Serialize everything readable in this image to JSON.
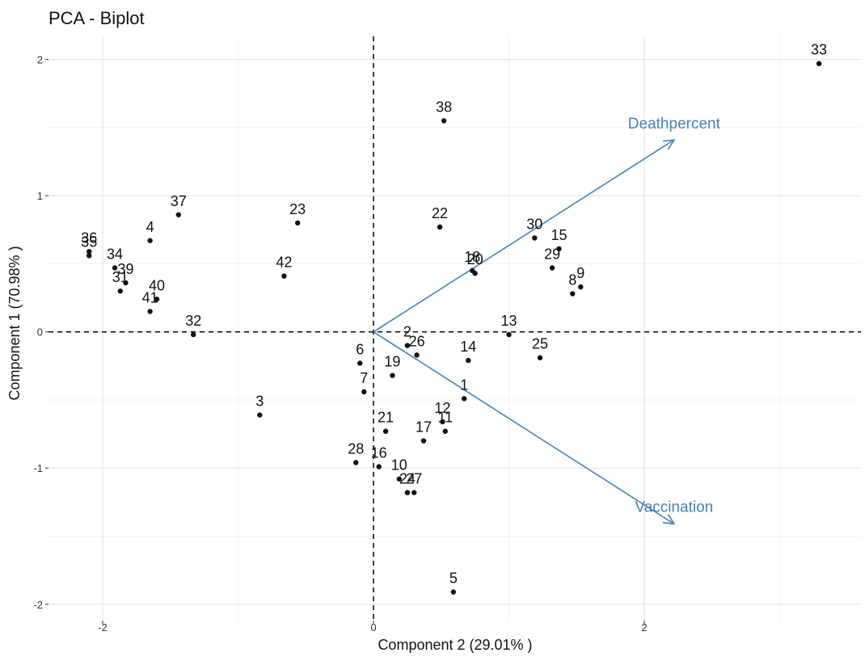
{
  "chart_data": {
    "type": "scatter",
    "title": "PCA - Biplot",
    "xlabel": "Component 2 (29.01% )",
    "ylabel": "Component 1 (70.98% )",
    "xlim": [
      -2.4,
      3.6
    ],
    "ylim": [
      -2.12,
      2.17
    ],
    "xticks": [
      -2,
      0,
      2
    ],
    "yticks": [
      -2,
      -1,
      0,
      1,
      2
    ],
    "grid": true,
    "reference_lines": {
      "x": 0,
      "y": 0,
      "style": "dashed"
    },
    "arrow_color": "#4682b4",
    "point_color": "#111111",
    "points": [
      {
        "label": "1",
        "x": 0.67,
        "y": -0.49
      },
      {
        "label": "2",
        "x": 0.25,
        "y": -0.1
      },
      {
        "label": "3",
        "x": -0.84,
        "y": -0.61
      },
      {
        "label": "4",
        "x": -1.65,
        "y": 0.67
      },
      {
        "label": "5",
        "x": 0.59,
        "y": -1.91
      },
      {
        "label": "6",
        "x": -0.1,
        "y": -0.23
      },
      {
        "label": "7",
        "x": -0.07,
        "y": -0.44
      },
      {
        "label": "8",
        "x": 1.47,
        "y": 0.28
      },
      {
        "label": "9",
        "x": 1.53,
        "y": 0.33
      },
      {
        "label": "10",
        "x": 0.19,
        "y": -1.08
      },
      {
        "label": "11",
        "x": 0.53,
        "y": -0.73
      },
      {
        "label": "12",
        "x": 0.51,
        "y": -0.66
      },
      {
        "label": "13",
        "x": 1.0,
        "y": -0.02
      },
      {
        "label": "14",
        "x": 0.7,
        "y": -0.21
      },
      {
        "label": "15",
        "x": 1.37,
        "y": 0.61
      },
      {
        "label": "16",
        "x": 0.04,
        "y": -0.99
      },
      {
        "label": "17",
        "x": 0.37,
        "y": -0.8
      },
      {
        "label": "18",
        "x": 0.73,
        "y": 0.45
      },
      {
        "label": "19",
        "x": 0.14,
        "y": -0.32
      },
      {
        "label": "20",
        "x": 0.75,
        "y": 0.43
      },
      {
        "label": "21",
        "x": 0.09,
        "y": -0.73
      },
      {
        "label": "22",
        "x": 0.49,
        "y": 0.77
      },
      {
        "label": "23",
        "x": -0.56,
        "y": 0.8
      },
      {
        "label": "24",
        "x": 0.25,
        "y": -1.18
      },
      {
        "label": "25",
        "x": 1.23,
        "y": -0.19
      },
      {
        "label": "26",
        "x": 0.32,
        "y": -0.17
      },
      {
        "label": "27",
        "x": 0.3,
        "y": -1.18
      },
      {
        "label": "28",
        "x": -0.13,
        "y": -0.96
      },
      {
        "label": "29",
        "x": 1.32,
        "y": 0.47
      },
      {
        "label": "30",
        "x": 1.19,
        "y": 0.69
      },
      {
        "label": "31",
        "x": -1.87,
        "y": 0.3
      },
      {
        "label": "32",
        "x": -1.33,
        "y": -0.02
      },
      {
        "label": "33",
        "x": 3.29,
        "y": 1.97
      },
      {
        "label": "34",
        "x": -1.91,
        "y": 0.47
      },
      {
        "label": "35",
        "x": -2.1,
        "y": 0.56
      },
      {
        "label": "36",
        "x": -2.1,
        "y": 0.59
      },
      {
        "label": "37",
        "x": -1.44,
        "y": 0.86
      },
      {
        "label": "38",
        "x": 0.52,
        "y": 1.55
      },
      {
        "label": "39",
        "x": -1.83,
        "y": 0.36
      },
      {
        "label": "40",
        "x": -1.6,
        "y": 0.24
      },
      {
        "label": "41",
        "x": -1.65,
        "y": 0.15
      },
      {
        "label": "42",
        "x": -0.66,
        "y": 0.41
      }
    ],
    "arrows": [
      {
        "label": "Deathpercent",
        "x": 2.22,
        "y": 1.41
      },
      {
        "label": "Vaccination",
        "x": 2.22,
        "y": -1.41
      }
    ]
  }
}
